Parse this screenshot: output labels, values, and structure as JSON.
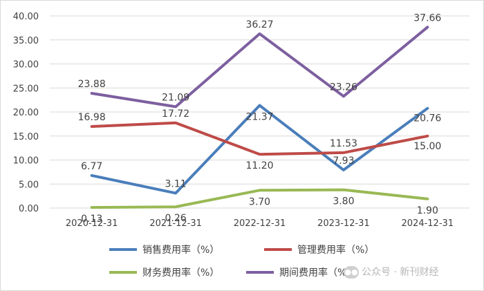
{
  "chart_data": {
    "type": "line",
    "categories": [
      "2020-12-31",
      "2021-12-31",
      "2022-12-31",
      "2023-12-31",
      "2024-12-31"
    ],
    "y_ticks": [
      "0.00",
      "5.00",
      "10.00",
      "15.00",
      "20.00",
      "25.00",
      "30.00",
      "35.00",
      "40.00"
    ],
    "ylim": [
      0,
      40
    ],
    "grid": "horizontal",
    "legend_position": "bottom",
    "title": "",
    "xlabel": "",
    "ylabel": "",
    "series": [
      {
        "name": "销售费用率（%）",
        "color": "#4a7ebb",
        "values": [
          6.77,
          3.11,
          21.37,
          7.93,
          20.76
        ],
        "labels": [
          "6.77",
          "3.11",
          "21.37",
          "7.93",
          "20.76"
        ]
      },
      {
        "name": "管理费用率（%）",
        "color": "#be4b48",
        "values": [
          16.98,
          17.72,
          11.2,
          11.53,
          15.0
        ],
        "labels": [
          "16.98",
          "17.72",
          "11.20",
          "11.53",
          "15.00"
        ]
      },
      {
        "name": "财务费用率（%）",
        "color": "#98b954",
        "values": [
          0.13,
          0.26,
          3.7,
          3.8,
          1.9
        ],
        "labels": [
          "0.13",
          "0.26",
          "3.70",
          "3.80",
          "1.90"
        ]
      },
      {
        "name": "期间费用率（%）",
        "color": "#7d5fa0",
        "values": [
          23.88,
          21.09,
          36.27,
          23.26,
          37.66
        ],
        "labels": [
          "23.88",
          "21.09",
          "36.27",
          "23.26",
          "37.66"
        ]
      }
    ]
  },
  "watermark": {
    "text": "公众号 · 新刊财经",
    "icon": "wechat-icon"
  }
}
